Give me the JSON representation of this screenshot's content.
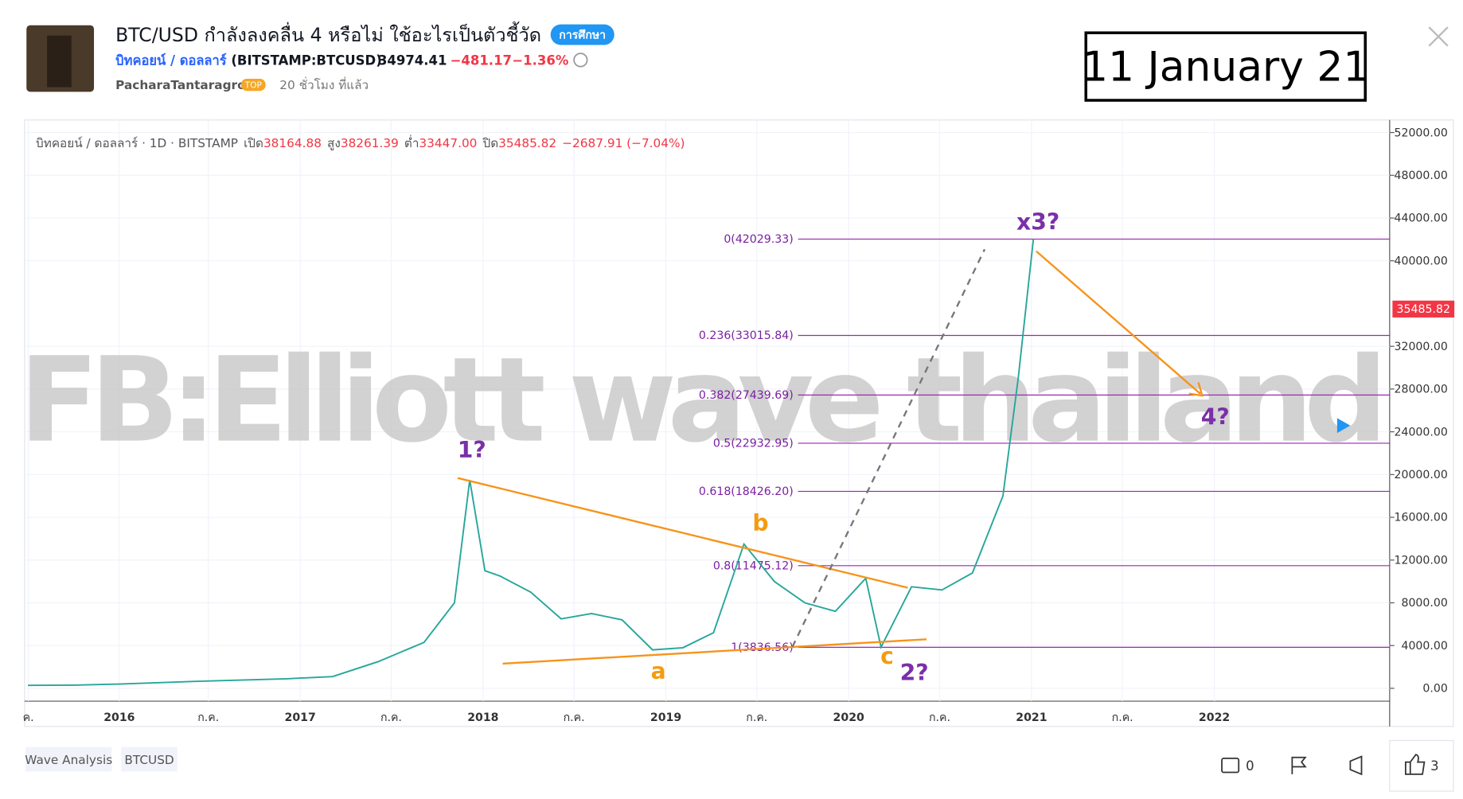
{
  "header": {
    "title": "BTC/USD กำลังลงคลื่น 4 หรือไม่ ใช้อะไรเป็นตัวชี้วัด",
    "tag": "การศึกษา",
    "symbol": "บิทคอยน์ / ดอลลาร์",
    "ticker": "(BITSTAMP:BTCUSD)",
    "price": "34974.41",
    "change": "−481.17",
    "change_pct": "−1.36%",
    "author": "PacharaTantaragron",
    "badge": "TOP",
    "time": "20 ชั่วโมง ที่แล้ว"
  },
  "date_box": "11 January 21",
  "chart": {
    "legend": {
      "symbol": "บิทคอยน์ / ดอลลาร์ · 1D · BITSTAMP",
      "open_label": "เปิด",
      "open": "38164.88",
      "high_label": "สูง",
      "high": "38261.39",
      "low_label": "ต่ำ",
      "low": "33447.00",
      "close_label": "ปิด",
      "close": "35485.82",
      "change": "−2687.91 (−7.04%)"
    },
    "ylim": [
      -1200,
      53000
    ],
    "yticks": [
      {
        "value": 0,
        "label": "0.00"
      },
      {
        "value": 4000,
        "label": "4000.00"
      },
      {
        "value": 8000,
        "label": "8000.00"
      },
      {
        "value": 12000,
        "label": "12000.00"
      },
      {
        "value": 16000,
        "label": "16000.00"
      },
      {
        "value": 20000,
        "label": "20000.00"
      },
      {
        "value": 24000,
        "label": "24000.00"
      },
      {
        "value": 28000,
        "label": "28000.00"
      },
      {
        "value": 32000,
        "label": "32000.00"
      },
      {
        "value": 40000,
        "label": "40000.00"
      },
      {
        "value": 44000,
        "label": "44000.00"
      },
      {
        "value": 48000,
        "label": "48000.00"
      },
      {
        "value": 52000,
        "label": "52000.00"
      }
    ],
    "last_price": {
      "value": 35485.82,
      "label": "35485.82"
    },
    "x_labels": [
      "ค.",
      "2016",
      "ก.ค.",
      "2017",
      "ก.ค.",
      "2018",
      "ก.ค.",
      "2019",
      "ก.ค.",
      "2020",
      "ก.ค.",
      "2021",
      "ก.ค.",
      "2022"
    ],
    "fib_levels": [
      {
        "value": 42029.33,
        "label": "0(42029.33)"
      },
      {
        "value": 33015.84,
        "label": "0.236(33015.84)"
      },
      {
        "value": 27439.69,
        "label": "0.382(27439.69)"
      },
      {
        "value": 22932.95,
        "label": "0.5(22932.95)"
      },
      {
        "value": 18426.2,
        "label": "0.618(18426.20)"
      },
      {
        "value": 11475.12,
        "label": "0.8(11475.12)"
      },
      {
        "value": 3836.56,
        "label": "1(3836.56)"
      }
    ],
    "price_path": {
      "x": [
        "2015-07",
        "2015-10",
        "2016-01",
        "2016-06",
        "2016-12",
        "2017-03",
        "2017-06",
        "2017-09",
        "2017-11",
        "2017-12",
        "2018-01",
        "2018-02",
        "2018-04",
        "2018-06",
        "2018-08",
        "2018-10",
        "2018-12",
        "2019-02",
        "2019-04",
        "2019-06",
        "2019-08",
        "2019-10",
        "2019-12",
        "2020-02",
        "2020-03",
        "2020-05",
        "2020-07",
        "2020-09",
        "2020-11",
        "2020-12",
        "2021-01"
      ],
      "values": [
        280,
        300,
        400,
        650,
        900,
        1100,
        2500,
        4300,
        8000,
        19500,
        11000,
        10500,
        9000,
        6500,
        7000,
        6400,
        3600,
        3800,
        5200,
        13500,
        10000,
        8000,
        7200,
        10300,
        3850,
        9500,
        9200,
        10800,
        18000,
        29000,
        42029
      ]
    },
    "wave_labels": [
      "x3?",
      "1?",
      "b",
      "a",
      "c",
      "2?",
      "4?"
    ],
    "watermark": "FB:Elliott wave thailand"
  },
  "footer": {
    "tags": [
      "Wave Analysis",
      "BTCUSD"
    ],
    "comments": "0",
    "likes": "3"
  }
}
